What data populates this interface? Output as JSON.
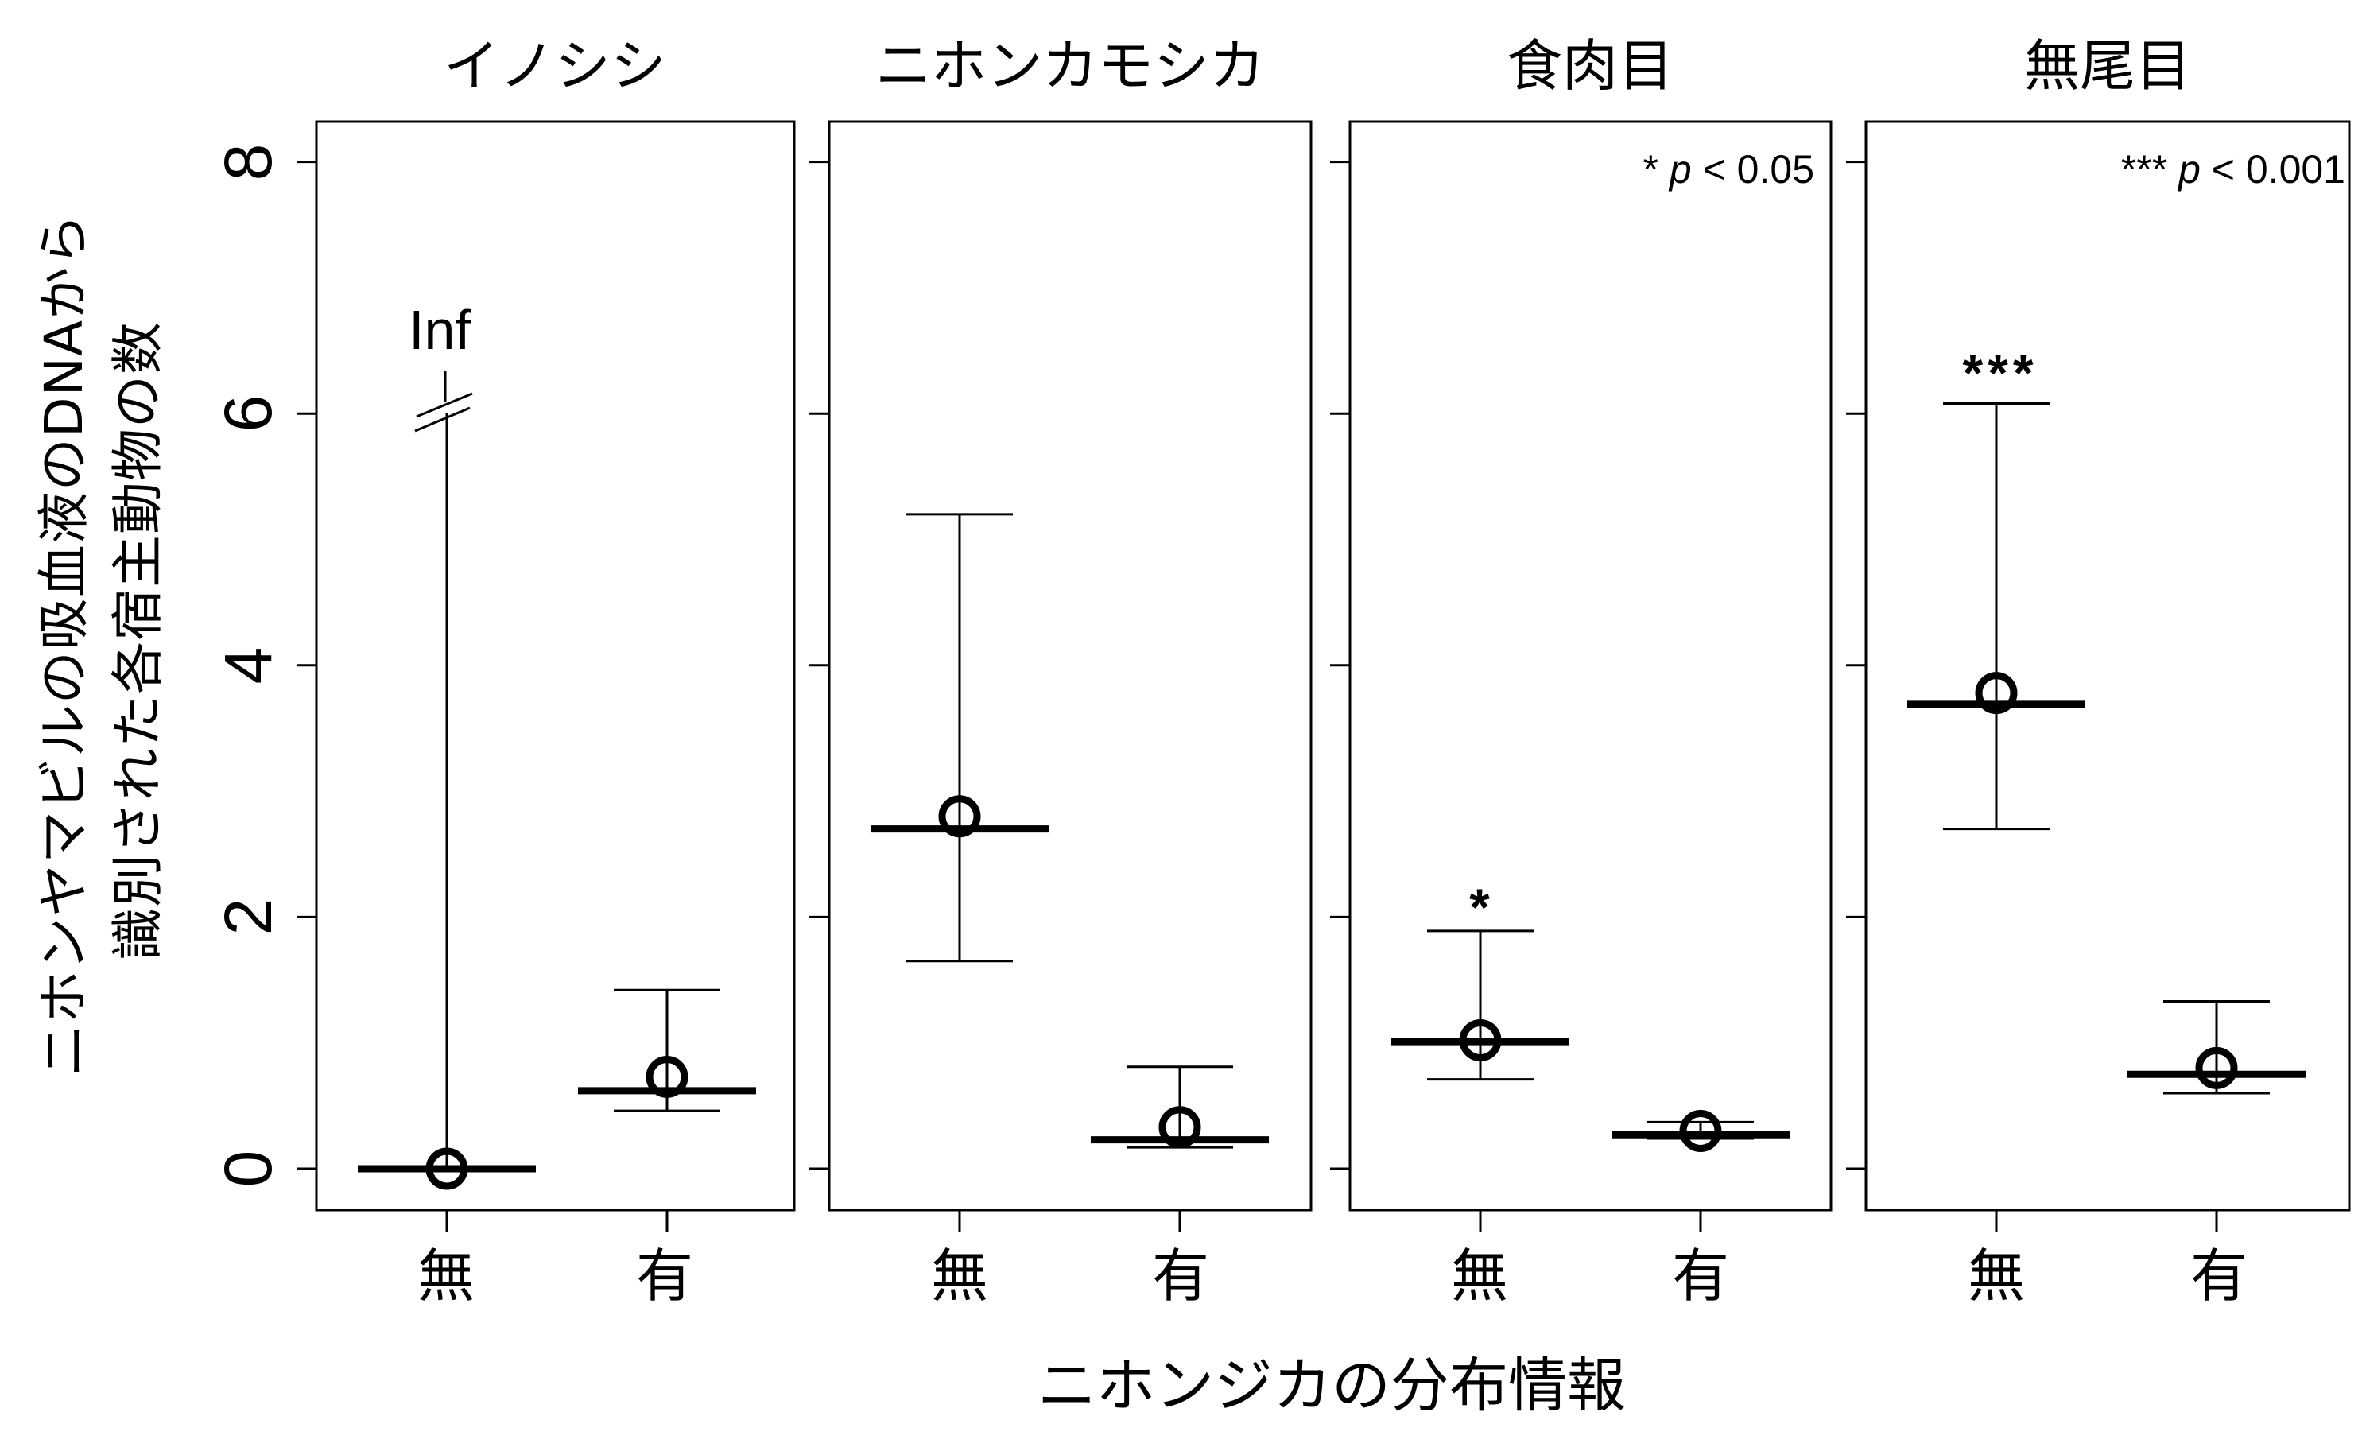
{
  "figure": {
    "y_axis_label": [
      "ニホンヤマビルの吸血液のDNAから",
      "識別された各宿主動物の数"
    ],
    "x_axis_label": "ニホンジカの分布情報",
    "y_ticks": [
      "0",
      "2",
      "4",
      "6",
      "8"
    ],
    "categories": [
      "無",
      "有"
    ]
  },
  "chart_data": {
    "type": "errorbar",
    "title": "",
    "xlabel": "ニホンジカの分布情報",
    "ylabel": "ニホンヤマビルの吸血液のDNAから識別された各宿主動物の数",
    "ylim": [
      -0.3,
      8.3
    ],
    "yticks": [
      0,
      2,
      4,
      6,
      8
    ],
    "grid": false,
    "legend": null,
    "categories": [
      "無",
      "有"
    ],
    "panels": [
      {
        "title": "イノシシ",
        "annotation": null,
        "series": [
          {
            "category": "無",
            "point": 0.0,
            "bar": 0.0,
            "lower": 0.0,
            "upper": "Inf",
            "upper_label": "Inf",
            "significance": ""
          },
          {
            "category": "有",
            "point": 0.73,
            "bar": 0.62,
            "lower": 0.46,
            "upper": 1.42,
            "significance": ""
          }
        ]
      },
      {
        "title": "ニホンカモシカ",
        "annotation": null,
        "series": [
          {
            "category": "無",
            "point": 2.8,
            "bar": 2.7,
            "lower": 1.65,
            "upper": 5.2,
            "significance": ""
          },
          {
            "category": "有",
            "point": 0.33,
            "bar": 0.23,
            "lower": 0.17,
            "upper": 0.81,
            "significance": ""
          }
        ]
      },
      {
        "title": "食肉目",
        "annotation": {
          "stars": "*",
          "p_symbol": "p",
          "text": "< 0.05"
        },
        "series": [
          {
            "category": "無",
            "point": 1.02,
            "bar": 1.01,
            "lower": 0.71,
            "upper": 1.89,
            "significance": "*"
          },
          {
            "category": "有",
            "point": 0.3,
            "bar": 0.27,
            "lower": 0.24,
            "upper": 0.37,
            "significance": ""
          }
        ]
      },
      {
        "title": "無尾目",
        "annotation": {
          "stars": "***",
          "p_symbol": "p",
          "text": "< 0.001"
        },
        "series": [
          {
            "category": "無",
            "point": 3.78,
            "bar": 3.69,
            "lower": 2.7,
            "upper": 6.08,
            "significance": "***"
          },
          {
            "category": "有",
            "point": 0.8,
            "bar": 0.75,
            "lower": 0.6,
            "upper": 1.33,
            "significance": ""
          }
        ]
      }
    ]
  }
}
